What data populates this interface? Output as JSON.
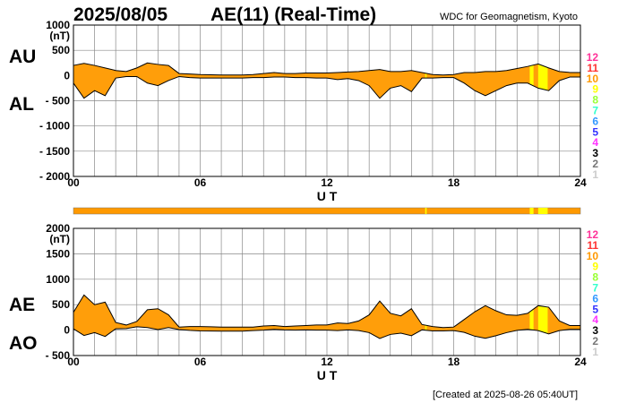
{
  "header": {
    "date": "2025/08/05",
    "title": "AE(11) (Real-Time)",
    "source": "WDC for Geomagnetism, Kyoto"
  },
  "footer": {
    "created": "[Created at 2025-08-26 05:40UT]"
  },
  "colors": {
    "fill": "#ff9e0a",
    "grid": "#888888",
    "level_colors": {
      "12": "#ff3399",
      "11": "#ff3333",
      "10": "#ff9900",
      "9": "#ffff00",
      "8": "#99ff33",
      "7": "#33ffcc",
      "6": "#3399ff",
      "5": "#3333ff",
      "4": "#ff33ff",
      "3": "#000000",
      "2": "#777777",
      "1": "#cccccc"
    }
  },
  "level_labels": [
    "12",
    "11",
    "10",
    "9",
    "8",
    "7",
    "6",
    "5",
    "4",
    "3",
    "2",
    "1"
  ],
  "chart_data": [
    {
      "type": "area",
      "name": "AU/AL",
      "series_labels": [
        "AU",
        "AL"
      ],
      "ylabel": "(nT)",
      "xlabel": "U T",
      "ylim": [
        -2000,
        1000
      ],
      "yticks": [
        1000,
        500,
        0,
        -500,
        -1000,
        -1500,
        -2000
      ],
      "ytick_labels": [
        "1000",
        "500",
        "0",
        "- 500",
        "- 1000",
        "- 1500",
        "- 2000"
      ],
      "xticks": [
        0,
        6,
        12,
        18,
        24
      ],
      "xtick_labels": [
        "00",
        "06",
        "12",
        "18",
        "24"
      ],
      "grid": true,
      "x": [
        0,
        0.5,
        1,
        1.5,
        2,
        2.5,
        3,
        3.5,
        4,
        4.5,
        5,
        5.5,
        6,
        6.5,
        7,
        7.5,
        8,
        8.5,
        9,
        9.5,
        10,
        10.5,
        11,
        11.5,
        12,
        12.5,
        13,
        13.5,
        14,
        14.5,
        15,
        15.5,
        16,
        16.5,
        17,
        17.5,
        18,
        18.5,
        19,
        19.5,
        20,
        20.5,
        21,
        21.5,
        22,
        22.5,
        23,
        23.5,
        24
      ],
      "upper": [
        200,
        240,
        200,
        150,
        100,
        80,
        150,
        250,
        220,
        200,
        40,
        30,
        20,
        15,
        10,
        10,
        10,
        20,
        40,
        60,
        40,
        40,
        50,
        50,
        50,
        60,
        70,
        80,
        100,
        120,
        80,
        80,
        100,
        60,
        20,
        10,
        20,
        60,
        60,
        80,
        80,
        100,
        140,
        180,
        230,
        150,
        80,
        60,
        60
      ],
      "lower": [
        -150,
        -450,
        -300,
        -400,
        -50,
        -20,
        -20,
        -150,
        -200,
        -100,
        -20,
        -40,
        -50,
        -50,
        -50,
        -50,
        -50,
        -40,
        -40,
        -30,
        -30,
        -40,
        -40,
        -50,
        -50,
        -80,
        -60,
        -100,
        -200,
        -450,
        -250,
        -200,
        -320,
        -50,
        -50,
        -40,
        -40,
        -150,
        -300,
        -400,
        -300,
        -200,
        -150,
        -150,
        -250,
        -300,
        -100,
        -30,
        -30
      ]
    },
    {
      "type": "area",
      "name": "AE/AO",
      "series_labels": [
        "AE",
        "AO"
      ],
      "ylabel": "(nT)",
      "xlabel": "U T",
      "ylim": [
        -500,
        2000
      ],
      "yticks": [
        2000,
        1500,
        1000,
        500,
        0,
        -500
      ],
      "ytick_labels": [
        "2000",
        "1500",
        "1000",
        "500",
        "0",
        "- 500"
      ],
      "xticks": [
        0,
        6,
        12,
        18,
        24
      ],
      "xtick_labels": [
        "00",
        "06",
        "12",
        "18",
        "24"
      ],
      "grid": true,
      "x": [
        0,
        0.5,
        1,
        1.5,
        2,
        2.5,
        3,
        3.5,
        4,
        4.5,
        5,
        5.5,
        6,
        6.5,
        7,
        7.5,
        8,
        8.5,
        9,
        9.5,
        10,
        10.5,
        11,
        11.5,
        12,
        12.5,
        13,
        13.5,
        14,
        14.5,
        15,
        15.5,
        16,
        16.5,
        17,
        17.5,
        18,
        18.5,
        19,
        19.5,
        20,
        20.5,
        21,
        21.5,
        22,
        22.5,
        23,
        23.5,
        24
      ],
      "upper": [
        350,
        690,
        500,
        550,
        150,
        100,
        170,
        400,
        420,
        300,
        60,
        70,
        70,
        65,
        60,
        60,
        60,
        60,
        80,
        90,
        70,
        80,
        90,
        100,
        100,
        140,
        130,
        180,
        300,
        570,
        330,
        280,
        420,
        110,
        70,
        50,
        60,
        210,
        360,
        480,
        380,
        300,
        290,
        330,
        480,
        450,
        180,
        90,
        90
      ],
      "lower": [
        25,
        -105,
        -50,
        -125,
        25,
        30,
        65,
        50,
        10,
        50,
        10,
        -5,
        -15,
        -17,
        -20,
        -20,
        -20,
        -10,
        0,
        15,
        5,
        0,
        5,
        0,
        0,
        -10,
        5,
        -10,
        -50,
        -165,
        -85,
        -60,
        -110,
        5,
        -15,
        -15,
        -10,
        -45,
        -120,
        -160,
        -110,
        -50,
        -5,
        15,
        -10,
        -75,
        -10,
        15,
        15
      ]
    }
  ],
  "activity": {
    "default_level": 10,
    "segments": [
      {
        "start": 16.65,
        "end": 16.72,
        "level": 9
      },
      {
        "start": 21.6,
        "end": 21.78,
        "level": 9
      },
      {
        "start": 22.0,
        "end": 22.45,
        "level": 9
      }
    ]
  }
}
